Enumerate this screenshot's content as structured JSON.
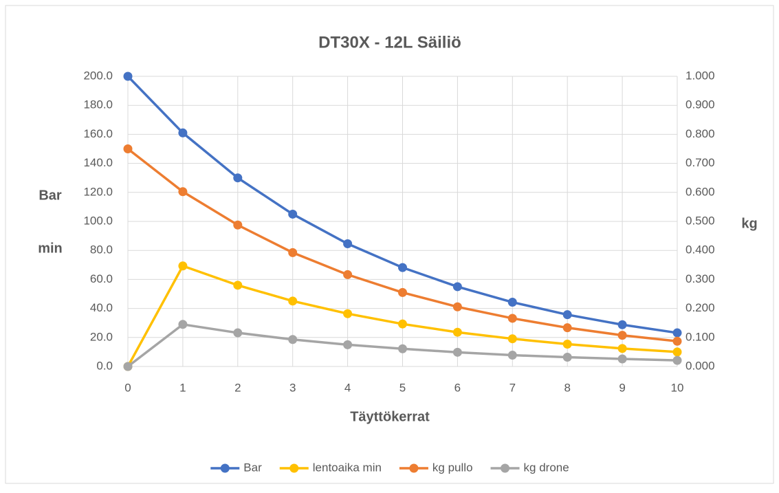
{
  "chart_data": {
    "type": "line",
    "title": "DT30X - 12L Säiliö",
    "xlabel": "Täyttökerrat",
    "ylabel": [
      "Bar",
      "min"
    ],
    "y2label": "kg",
    "x": [
      0,
      1,
      2,
      3,
      4,
      5,
      6,
      7,
      8,
      9,
      10
    ],
    "xlim": [
      0,
      10
    ],
    "xticks": [
      0,
      1,
      2,
      3,
      4,
      5,
      6,
      7,
      8,
      9,
      10
    ],
    "ylim": [
      0,
      200
    ],
    "yticks": [
      {
        "value": 0,
        "label": "0.0"
      },
      {
        "value": 20,
        "label": "20.0"
      },
      {
        "value": 40,
        "label": "40.0"
      },
      {
        "value": 60,
        "label": "60.0"
      },
      {
        "value": 80,
        "label": "80.0"
      },
      {
        "value": 100,
        "label": "100.0"
      },
      {
        "value": 120,
        "label": "120.0"
      },
      {
        "value": 140,
        "label": "140.0"
      },
      {
        "value": 160,
        "label": "160.0"
      },
      {
        "value": 180,
        "label": "180.0"
      },
      {
        "value": 200,
        "label": "200.0"
      }
    ],
    "y2lim": [
      0,
      1
    ],
    "y2ticks": [
      {
        "value": 0,
        "label": "0.000"
      },
      {
        "value": 0.1,
        "label": "0.100"
      },
      {
        "value": 0.2,
        "label": "0.200"
      },
      {
        "value": 0.3,
        "label": "0.300"
      },
      {
        "value": 0.4,
        "label": "0.400"
      },
      {
        "value": 0.5,
        "label": "0.500"
      },
      {
        "value": 0.6,
        "label": "0.600"
      },
      {
        "value": 0.7,
        "label": "0.700"
      },
      {
        "value": 0.8,
        "label": "0.800"
      },
      {
        "value": 0.9,
        "label": "0.900"
      },
      {
        "value": 1,
        "label": "1.000"
      }
    ],
    "grid": true,
    "legend": "bottom",
    "series": [
      {
        "name": "Bar",
        "color": "#4472c4",
        "values": [
          200,
          161,
          130,
          105,
          84.6,
          68.2,
          55,
          44.3,
          35.7,
          28.8,
          23.2
        ]
      },
      {
        "name": "lentoaika min",
        "color": "#ffc000",
        "values": [
          0,
          69.3,
          56,
          45.1,
          36.4,
          29.3,
          23.6,
          19.1,
          15.4,
          12.4,
          10
        ]
      },
      {
        "name": "kg pullo",
        "color": "#ed7d31",
        "values": [
          150,
          120.5,
          97.5,
          78.5,
          63.3,
          51,
          41.1,
          33.2,
          26.7,
          21.5,
          17.4
        ]
      },
      {
        "name": "kg drone",
        "color": "#a5a5a5",
        "axis": "y2",
        "values": [
          0,
          0.145,
          0.116,
          0.093,
          0.075,
          0.061,
          0.049,
          0.039,
          0.032,
          0.026,
          0.021
        ]
      }
    ]
  }
}
